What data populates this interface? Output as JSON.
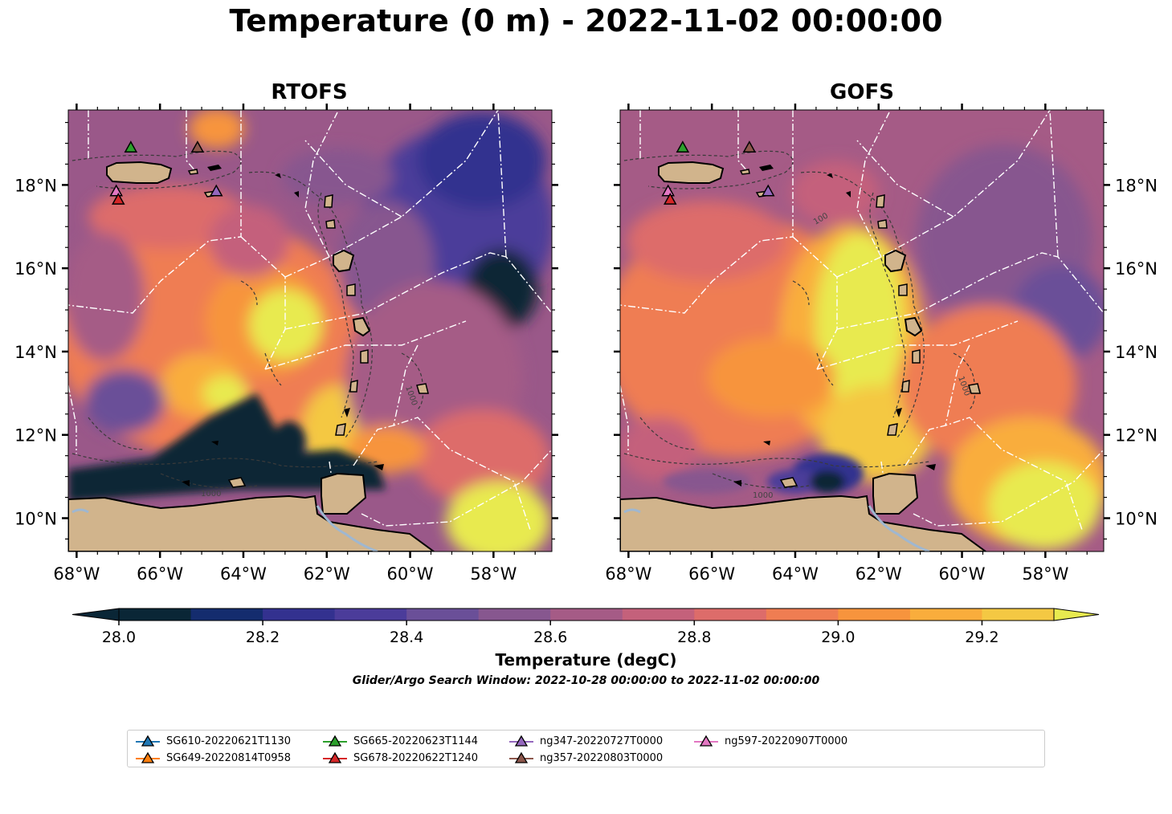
{
  "title": "Temperature (0 m) - 2022-11-02 00:00:00",
  "panels": [
    {
      "title": "RTOFS"
    },
    {
      "title": "GOFS"
    }
  ],
  "lon_labels": [
    "68°W",
    "66°W",
    "64°W",
    "62°W",
    "60°W",
    "58°W"
  ],
  "lat_labels": [
    "18°N",
    "16°N",
    "14°N",
    "12°N",
    "10°N"
  ],
  "contour_labels": [
    "1000",
    "1000",
    "1000",
    "100",
    "1000"
  ],
  "colorbar": {
    "label": "Temperature (degC)",
    "ticks": [
      "28.0",
      "28.2",
      "28.4",
      "28.6",
      "28.8",
      "29.0",
      "29.2"
    ],
    "min": 28.0,
    "max": 29.3,
    "step": 0.1,
    "colors": [
      "#0a2636",
      "#142c6e",
      "#33318f",
      "#4b3c9a",
      "#6a4f98",
      "#87578f",
      "#a55b86",
      "#c4617b",
      "#dd6c6a",
      "#ef7d52",
      "#f7943d",
      "#f9ad3c",
      "#f4c843",
      "#e8ea4f"
    ]
  },
  "search_window": "Glider/Argo Search Window: 2022-10-28 00:00:00 to 2022-11-02 00:00:00",
  "legend": [
    {
      "label": "SG610-20220621T1130",
      "color": "#1f77b4"
    },
    {
      "label": "SG649-20220814T0958",
      "color": "#ff7f0e"
    },
    {
      "label": "SG665-20220623T1144",
      "color": "#2ca02c"
    },
    {
      "label": "SG678-20220622T1240",
      "color": "#d62728"
    },
    {
      "label": "ng347-20220727T0000",
      "color": "#9467bd"
    },
    {
      "label": "ng357-20220803T0000",
      "color": "#8c564b"
    },
    {
      "label": "ng597-20220907T0000",
      "color": "#e377c2"
    }
  ],
  "map_extent": {
    "lon": [
      -68.2,
      -56.6
    ],
    "lat": [
      9.2,
      19.8
    ]
  },
  "glider_positions": [
    {
      "name": "SG665-20220623T1144",
      "lon": -66.7,
      "lat": 18.9,
      "color": "#2ca02c"
    },
    {
      "name": "ng357-20220803T0000",
      "lon": -65.1,
      "lat": 18.9,
      "color": "#8c564b"
    },
    {
      "name": "ng347-20220727T0000",
      "lon": -64.65,
      "lat": 17.85,
      "color": "#9467bd"
    },
    {
      "name": "ng597-20220907T0000",
      "lon": -67.05,
      "lat": 17.85,
      "color": "#e377c2"
    },
    {
      "name": "SG678-20220622T1240",
      "lon": -67.0,
      "lat": 17.65,
      "color": "#d62728"
    }
  ]
}
